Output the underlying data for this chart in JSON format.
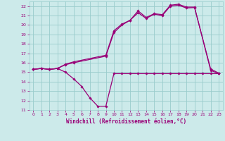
{
  "background_color": "#cceaea",
  "grid_color": "#99cccc",
  "line_color": "#990077",
  "xlabel": "Windchill (Refroidissement éolien,°C)",
  "xlim": [
    -0.5,
    23.5
  ],
  "ylim": [
    11,
    22.5
  ],
  "yticks": [
    11,
    12,
    13,
    14,
    15,
    16,
    17,
    18,
    19,
    20,
    21,
    22
  ],
  "xticks": [
    0,
    1,
    2,
    3,
    4,
    5,
    6,
    7,
    8,
    9,
    10,
    11,
    12,
    13,
    14,
    15,
    16,
    17,
    18,
    19,
    20,
    21,
    22,
    23
  ],
  "series": [
    {
      "x": [
        0,
        1,
        2,
        3,
        4,
        5,
        6,
        7,
        8,
        9,
        10,
        11,
        12,
        13,
        14,
        15,
        16,
        17,
        18,
        19,
        20,
        21,
        22,
        23
      ],
      "y": [
        15.3,
        15.4,
        15.3,
        15.4,
        15.0,
        14.3,
        13.5,
        12.3,
        11.4,
        11.4,
        14.85,
        14.85,
        14.85,
        14.85,
        14.85,
        14.85,
        14.85,
        14.85,
        14.85,
        14.85,
        14.85,
        14.85,
        14.85,
        14.85
      ]
    },
    {
      "x": [
        0,
        1,
        2,
        3,
        4,
        5,
        9,
        10,
        11,
        12,
        13,
        14,
        15,
        16,
        17,
        18,
        19,
        20,
        22,
        23
      ],
      "y": [
        15.3,
        15.4,
        15.3,
        15.4,
        15.8,
        16.0,
        16.7,
        19.2,
        20.0,
        20.5,
        21.5,
        20.8,
        21.2,
        21.1,
        22.1,
        22.2,
        21.9,
        21.9,
        15.2,
        14.85
      ]
    },
    {
      "x": [
        0,
        1,
        2,
        3,
        4,
        5,
        9,
        10,
        11,
        12,
        13,
        14,
        15,
        16,
        17,
        18,
        19,
        20,
        22,
        23
      ],
      "y": [
        15.3,
        15.4,
        15.3,
        15.4,
        15.85,
        16.1,
        16.8,
        19.4,
        20.1,
        20.5,
        21.3,
        20.7,
        21.15,
        21.0,
        22.0,
        22.1,
        21.8,
        21.85,
        15.35,
        14.9
      ]
    }
  ]
}
